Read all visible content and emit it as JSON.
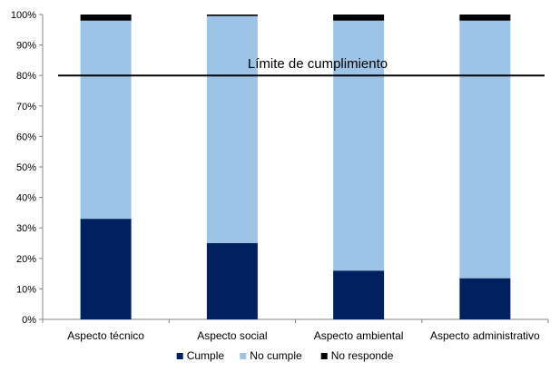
{
  "chart_data": {
    "type": "bar",
    "stacked": true,
    "categories": [
      "Aspecto técnico",
      "Aspecto social",
      "Aspecto ambiental",
      "Aspecto administrativo"
    ],
    "series": [
      {
        "name": "Cumple",
        "values": [
          33,
          25,
          16,
          13.5
        ],
        "color": "#002060"
      },
      {
        "name": "No cumple",
        "values": [
          65,
          74.5,
          82,
          84.5
        ],
        "color": "#9DC3E6"
      },
      {
        "name": "No responde",
        "values": [
          2,
          0.5,
          2,
          2
        ],
        "color": "#000000"
      }
    ],
    "ylim": [
      0,
      100
    ],
    "yticks": [
      "0%",
      "10%",
      "20%",
      "30%",
      "40%",
      "50%",
      "60%",
      "70%",
      "80%",
      "90%",
      "100%"
    ],
    "reference_line": {
      "value": 80,
      "label": "Límite de cumplimiento"
    },
    "legend_position": "bottom",
    "grid": false,
    "title": "",
    "xlabel": "",
    "ylabel": ""
  }
}
